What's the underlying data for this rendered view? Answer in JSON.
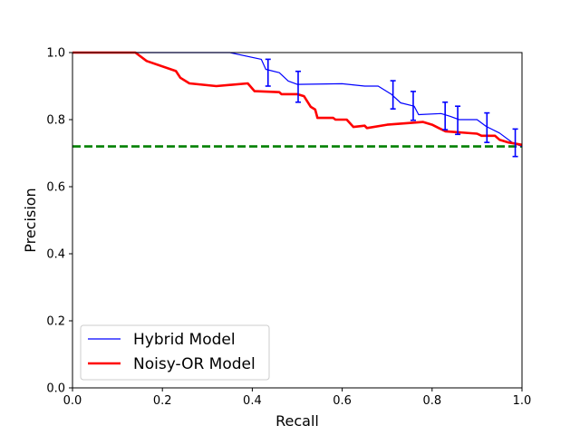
{
  "chart_data": {
    "type": "line",
    "title": "",
    "xlabel": "Recall",
    "ylabel": "Precision",
    "xlim": [
      0.0,
      1.0
    ],
    "ylim": [
      0.0,
      1.0
    ],
    "xticks": [
      "0.0",
      "0.2",
      "0.4",
      "0.6",
      "0.8",
      "1.0"
    ],
    "yticks": [
      "0.0",
      "0.2",
      "0.4",
      "0.6",
      "0.8",
      "1.0"
    ],
    "grid": false,
    "legend_position": "lower-left",
    "baseline": {
      "y": 0.72,
      "color": "#008000",
      "style": "dashed"
    },
    "series": [
      {
        "name": "Hybrid Model",
        "color": "#0000ff",
        "x": [
          0.0,
          0.35,
          0.42,
          0.43,
          0.46,
          0.48,
          0.5,
          0.6,
          0.65,
          0.68,
          0.71,
          0.73,
          0.76,
          0.77,
          0.82,
          0.84,
          0.86,
          0.89,
          0.9,
          0.92,
          0.95,
          0.98,
          1.0
        ],
        "y": [
          1.0,
          1.0,
          0.98,
          0.95,
          0.94,
          0.915,
          0.905,
          0.907,
          0.9,
          0.9,
          0.875,
          0.85,
          0.84,
          0.815,
          0.818,
          0.81,
          0.8,
          0.8,
          0.8,
          0.78,
          0.76,
          0.73,
          0.72
        ],
        "error_bars": [
          {
            "x": 0.435,
            "y": 0.94,
            "low": 0.9,
            "high": 0.98
          },
          {
            "x": 0.502,
            "y": 0.9,
            "low": 0.852,
            "high": 0.944
          },
          {
            "x": 0.713,
            "y": 0.875,
            "low": 0.832,
            "high": 0.916
          },
          {
            "x": 0.758,
            "y": 0.84,
            "low": 0.798,
            "high": 0.884
          },
          {
            "x": 0.829,
            "y": 0.81,
            "low": 0.77,
            "high": 0.852
          },
          {
            "x": 0.857,
            "y": 0.8,
            "low": 0.756,
            "high": 0.84
          },
          {
            "x": 0.922,
            "y": 0.775,
            "low": 0.732,
            "high": 0.82
          },
          {
            "x": 0.985,
            "y": 0.73,
            "low": 0.69,
            "high": 0.772
          }
        ]
      },
      {
        "name": "Noisy-OR Model",
        "color": "#ff0000",
        "x": [
          0.0,
          0.14,
          0.165,
          0.23,
          0.24,
          0.26,
          0.32,
          0.39,
          0.405,
          0.46,
          0.465,
          0.5,
          0.515,
          0.53,
          0.54,
          0.545,
          0.58,
          0.585,
          0.61,
          0.625,
          0.65,
          0.655,
          0.7,
          0.78,
          0.8,
          0.815,
          0.83,
          0.9,
          0.91,
          0.94,
          0.95,
          0.96,
          0.97,
          1.0
        ],
        "y": [
          1.0,
          1.0,
          0.975,
          0.945,
          0.925,
          0.908,
          0.9,
          0.908,
          0.885,
          0.882,
          0.876,
          0.876,
          0.87,
          0.838,
          0.83,
          0.805,
          0.805,
          0.8,
          0.8,
          0.778,
          0.782,
          0.775,
          0.785,
          0.793,
          0.785,
          0.775,
          0.765,
          0.758,
          0.752,
          0.752,
          0.74,
          0.736,
          0.732,
          0.725
        ]
      }
    ]
  }
}
